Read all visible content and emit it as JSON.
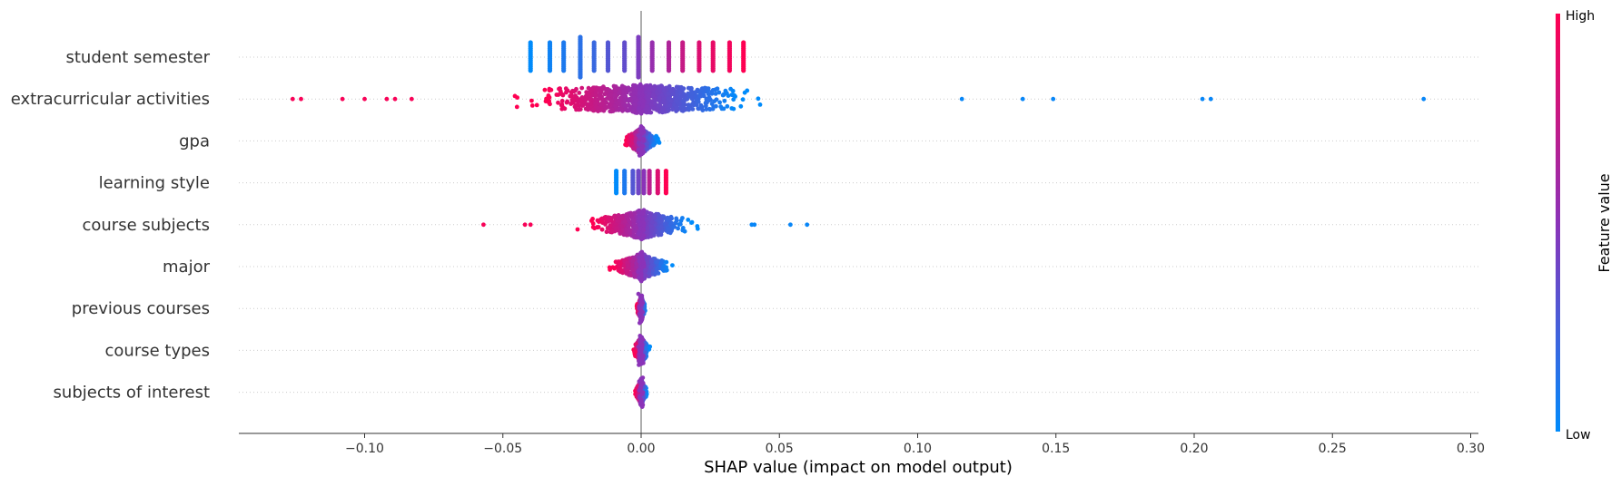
{
  "chart_data": {
    "type": "scatter",
    "subtype": "shap-beeswarm",
    "xlabel": "SHAP value (impact on model output)",
    "xlim": [
      -0.147,
      0.304
    ],
    "xticks": [
      -0.1,
      -0.05,
      0.0,
      0.05,
      0.1,
      0.15,
      0.2,
      0.25,
      0.3
    ],
    "xtick_labels": [
      "−0.10",
      "−0.05",
      "0.00",
      "0.05",
      "0.10",
      "0.15",
      "0.20",
      "0.25",
      "0.30"
    ],
    "grid": "horizontal dotted per feature",
    "colorbar": {
      "title": "Feature value",
      "high_label": "High",
      "low_label": "Low",
      "low_color": "#008bfb",
      "mid_color": "#8b33b8",
      "high_color": "#ff0052"
    },
    "features": [
      {
        "name": "student semester",
        "min": -0.04,
        "max": 0.038,
        "clusters": [
          [
            -0.04,
            0.0
          ],
          [
            -0.033,
            0.05
          ],
          [
            -0.028,
            0.1
          ],
          [
            -0.022,
            0.15
          ],
          [
            -0.017,
            0.2
          ],
          [
            -0.012,
            0.3
          ],
          [
            -0.006,
            0.35
          ],
          [
            -0.001,
            0.45
          ],
          [
            0.004,
            0.55
          ],
          [
            0.01,
            0.65
          ],
          [
            0.015,
            0.75
          ],
          [
            0.021,
            0.85
          ],
          [
            0.026,
            0.9
          ],
          [
            0.032,
            0.95
          ],
          [
            0.037,
            1.0
          ]
        ]
      },
      {
        "name": "extracurricular activities",
        "min": -0.126,
        "max": 0.283,
        "outliers_low": [
          -0.126,
          -0.123,
          -0.108,
          -0.1,
          -0.092,
          -0.089,
          -0.083
        ],
        "outliers_high": [
          0.116,
          0.138,
          0.149,
          0.203,
          0.206,
          0.283
        ]
      },
      {
        "name": "gpa",
        "min": -0.013,
        "max": 0.011
      },
      {
        "name": "learning style",
        "min": -0.009,
        "max": 0.009,
        "clusters": [
          [
            -0.009,
            0.0
          ],
          [
            -0.006,
            0.1
          ],
          [
            -0.003,
            0.3
          ],
          [
            -0.001,
            0.4
          ],
          [
            0.001,
            0.5
          ],
          [
            0.003,
            0.7
          ],
          [
            0.006,
            0.85
          ],
          [
            0.009,
            1.0
          ]
        ]
      },
      {
        "name": "course subjects",
        "min": -0.057,
        "max": 0.06,
        "outliers_low": [
          -0.057,
          -0.042,
          -0.04
        ],
        "outliers_high": [
          0.04,
          0.041,
          0.054,
          0.06
        ]
      },
      {
        "name": "major",
        "min": -0.02,
        "max": 0.024
      },
      {
        "name": "previous courses",
        "min": -0.003,
        "max": 0.003
      },
      {
        "name": "course types",
        "min": -0.003,
        "max": 0.007
      },
      {
        "name": "subjects of interest",
        "min": -0.004,
        "max": 0.004
      }
    ]
  }
}
